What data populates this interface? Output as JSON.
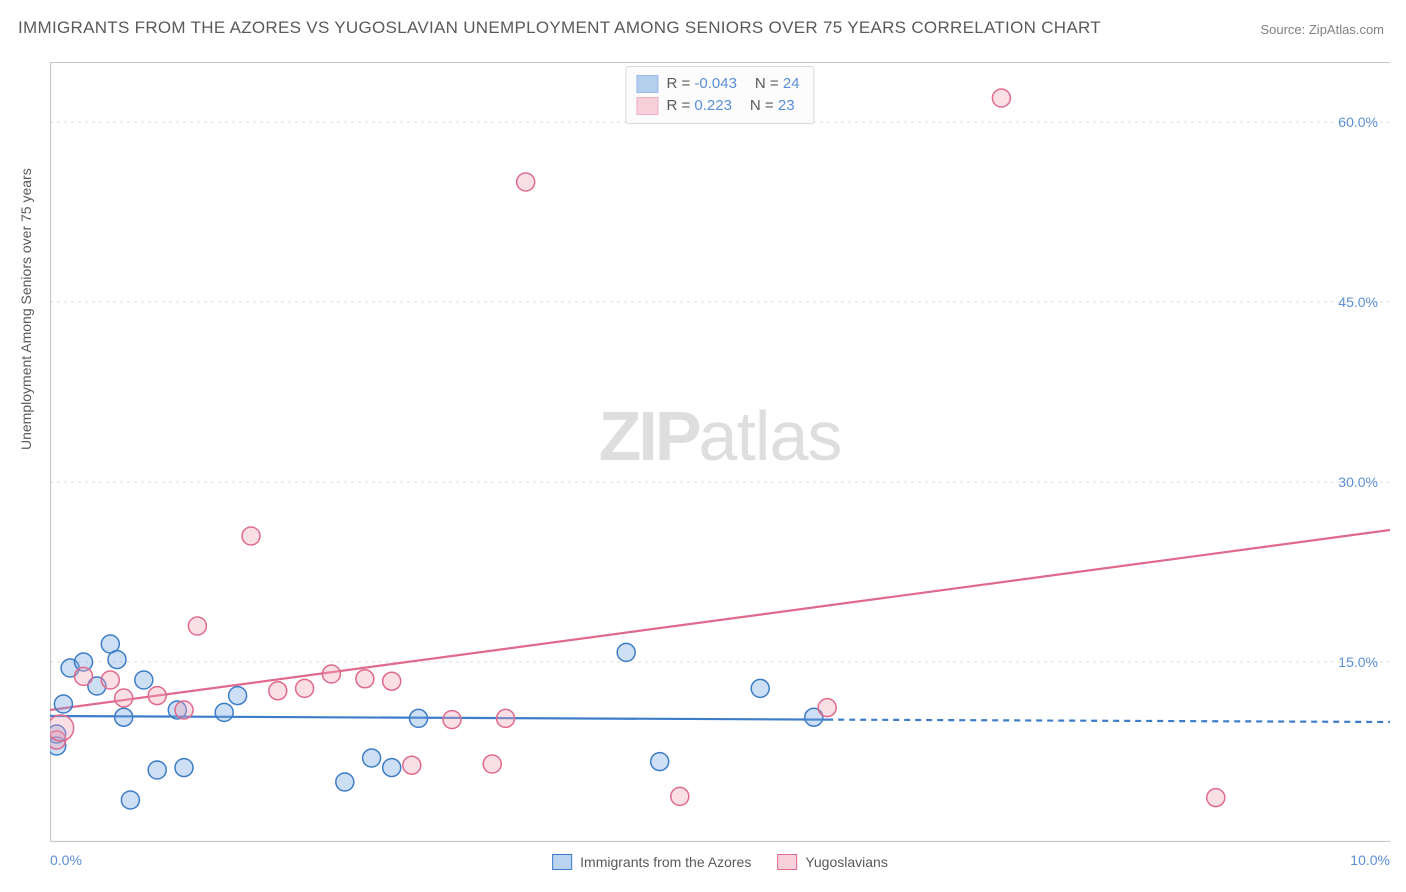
{
  "title": "IMMIGRANTS FROM THE AZORES VS YUGOSLAVIAN UNEMPLOYMENT AMONG SENIORS OVER 75 YEARS CORRELATION CHART",
  "source": "Source: ZipAtlas.com",
  "ylabel": "Unemployment Among Seniors over 75 years",
  "watermark_bold": "ZIP",
  "watermark_light": "atlas",
  "chart": {
    "type": "scatter",
    "background_color": "#ffffff",
    "grid_color": "#dcdcdc",
    "axis_color": "#c7c7c7",
    "label_color": "#5a5a5a",
    "tick_color": "#5b8fd8",
    "tick_fontsize": 14,
    "label_fontsize": 14,
    "title_fontsize": 17,
    "xlim": [
      0.0,
      10.0
    ],
    "ylim": [
      0.0,
      65.0
    ],
    "xticks": [
      {
        "v": 0.0,
        "label": "0.0%"
      },
      {
        "v": 10.0,
        "label": "10.0%"
      }
    ],
    "yticks": [
      {
        "v": 15.0,
        "label": "15.0%"
      },
      {
        "v": 30.0,
        "label": "30.0%"
      },
      {
        "v": 45.0,
        "label": "45.0%"
      },
      {
        "v": 60.0,
        "label": "60.0%"
      }
    ],
    "marker_radius": 9,
    "marker_stroke_width": 1.5,
    "marker_fill_opacity": 0.35,
    "series": [
      {
        "name": "Immigrants from the Azores",
        "color": "#6fa3e0",
        "stroke": "#3d7cc9",
        "R": "-0.043",
        "N": "24",
        "trend": {
          "style": "solid-then-dashed",
          "x1": 0.0,
          "y1": 10.5,
          "x2": 5.8,
          "y2": 10.2,
          "x3": 10.0,
          "y3": 10.0,
          "line_width": 2.2
        },
        "points": [
          {
            "x": 0.05,
            "y": 9.0
          },
          {
            "x": 0.05,
            "y": 8.0
          },
          {
            "x": 0.1,
            "y": 11.5
          },
          {
            "x": 0.15,
            "y": 14.5
          },
          {
            "x": 0.25,
            "y": 15.0
          },
          {
            "x": 0.35,
            "y": 13.0
          },
          {
            "x": 0.45,
            "y": 16.5
          },
          {
            "x": 0.5,
            "y": 15.2
          },
          {
            "x": 0.55,
            "y": 10.4
          },
          {
            "x": 0.6,
            "y": 3.5
          },
          {
            "x": 0.7,
            "y": 13.5
          },
          {
            "x": 0.8,
            "y": 6.0
          },
          {
            "x": 0.95,
            "y": 11.0
          },
          {
            "x": 1.0,
            "y": 6.2
          },
          {
            "x": 1.3,
            "y": 10.8
          },
          {
            "x": 1.4,
            "y": 12.2
          },
          {
            "x": 2.2,
            "y": 5.0
          },
          {
            "x": 2.4,
            "y": 7.0
          },
          {
            "x": 2.55,
            "y": 6.2
          },
          {
            "x": 2.75,
            "y": 10.3
          },
          {
            "x": 4.3,
            "y": 15.8
          },
          {
            "x": 4.55,
            "y": 6.7
          },
          {
            "x": 5.3,
            "y": 12.8
          },
          {
            "x": 5.7,
            "y": 10.4
          }
        ]
      },
      {
        "name": "Yugoslavians",
        "color": "#f2a3b8",
        "stroke": "#e06a8c",
        "R": "0.223",
        "N": "23",
        "trend": {
          "style": "solid",
          "x1": 0.0,
          "y1": 11.0,
          "x2": 10.0,
          "y2": 26.0,
          "line_width": 2.2
        },
        "points": [
          {
            "x": 0.05,
            "y": 8.5
          },
          {
            "x": 0.08,
            "y": 9.5,
            "r": 13
          },
          {
            "x": 0.25,
            "y": 13.8
          },
          {
            "x": 0.45,
            "y": 13.5
          },
          {
            "x": 0.55,
            "y": 12.0
          },
          {
            "x": 0.8,
            "y": 12.2
          },
          {
            "x": 1.0,
            "y": 11.0
          },
          {
            "x": 1.1,
            "y": 18.0
          },
          {
            "x": 1.5,
            "y": 25.5
          },
          {
            "x": 1.7,
            "y": 12.6
          },
          {
            "x": 1.9,
            "y": 12.8
          },
          {
            "x": 2.1,
            "y": 14.0
          },
          {
            "x": 2.35,
            "y": 13.6
          },
          {
            "x": 2.55,
            "y": 13.4
          },
          {
            "x": 2.7,
            "y": 6.4
          },
          {
            "x": 3.0,
            "y": 10.2
          },
          {
            "x": 3.3,
            "y": 6.5
          },
          {
            "x": 3.4,
            "y": 10.3
          },
          {
            "x": 3.55,
            "y": 55.0
          },
          {
            "x": 4.7,
            "y": 3.8
          },
          {
            "x": 5.8,
            "y": 11.2
          },
          {
            "x": 7.1,
            "y": 62.0
          },
          {
            "x": 8.7,
            "y": 3.7
          }
        ]
      }
    ]
  },
  "legend_bottom": [
    {
      "swatch_fill": "#b9d3f0",
      "swatch_border": "#3d7cc9",
      "label": "Immigrants from the Azores"
    },
    {
      "swatch_fill": "#f9d2dd",
      "swatch_border": "#e06a8c",
      "label": "Yugoslavians"
    }
  ],
  "legend_top_labels": {
    "R": "R =",
    "N": "N ="
  }
}
